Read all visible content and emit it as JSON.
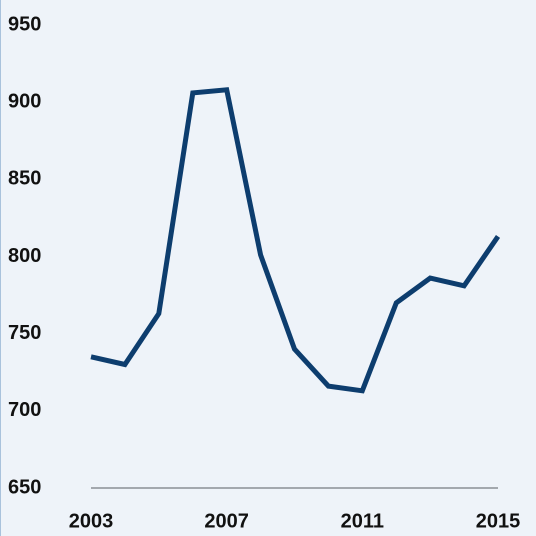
{
  "chart_data": {
    "type": "line",
    "x": [
      2003,
      2004,
      2005,
      2006,
      2007,
      2008,
      2009,
      2010,
      2011,
      2012,
      2013,
      2014,
      2015
    ],
    "series": [
      {
        "color": "#0d3d6e",
        "values": [
          735,
          730,
          763,
          906,
          908,
          801,
          740,
          716,
          713,
          770,
          786,
          781,
          813
        ]
      }
    ],
    "xlim": [
      2003,
      2015
    ],
    "xticks": [
      2003,
      2007,
      2011,
      2015
    ],
    "ylim": [
      650,
      950
    ],
    "yticks": [
      650,
      700,
      750,
      800,
      850,
      900,
      950
    ],
    "grid": false
  }
}
